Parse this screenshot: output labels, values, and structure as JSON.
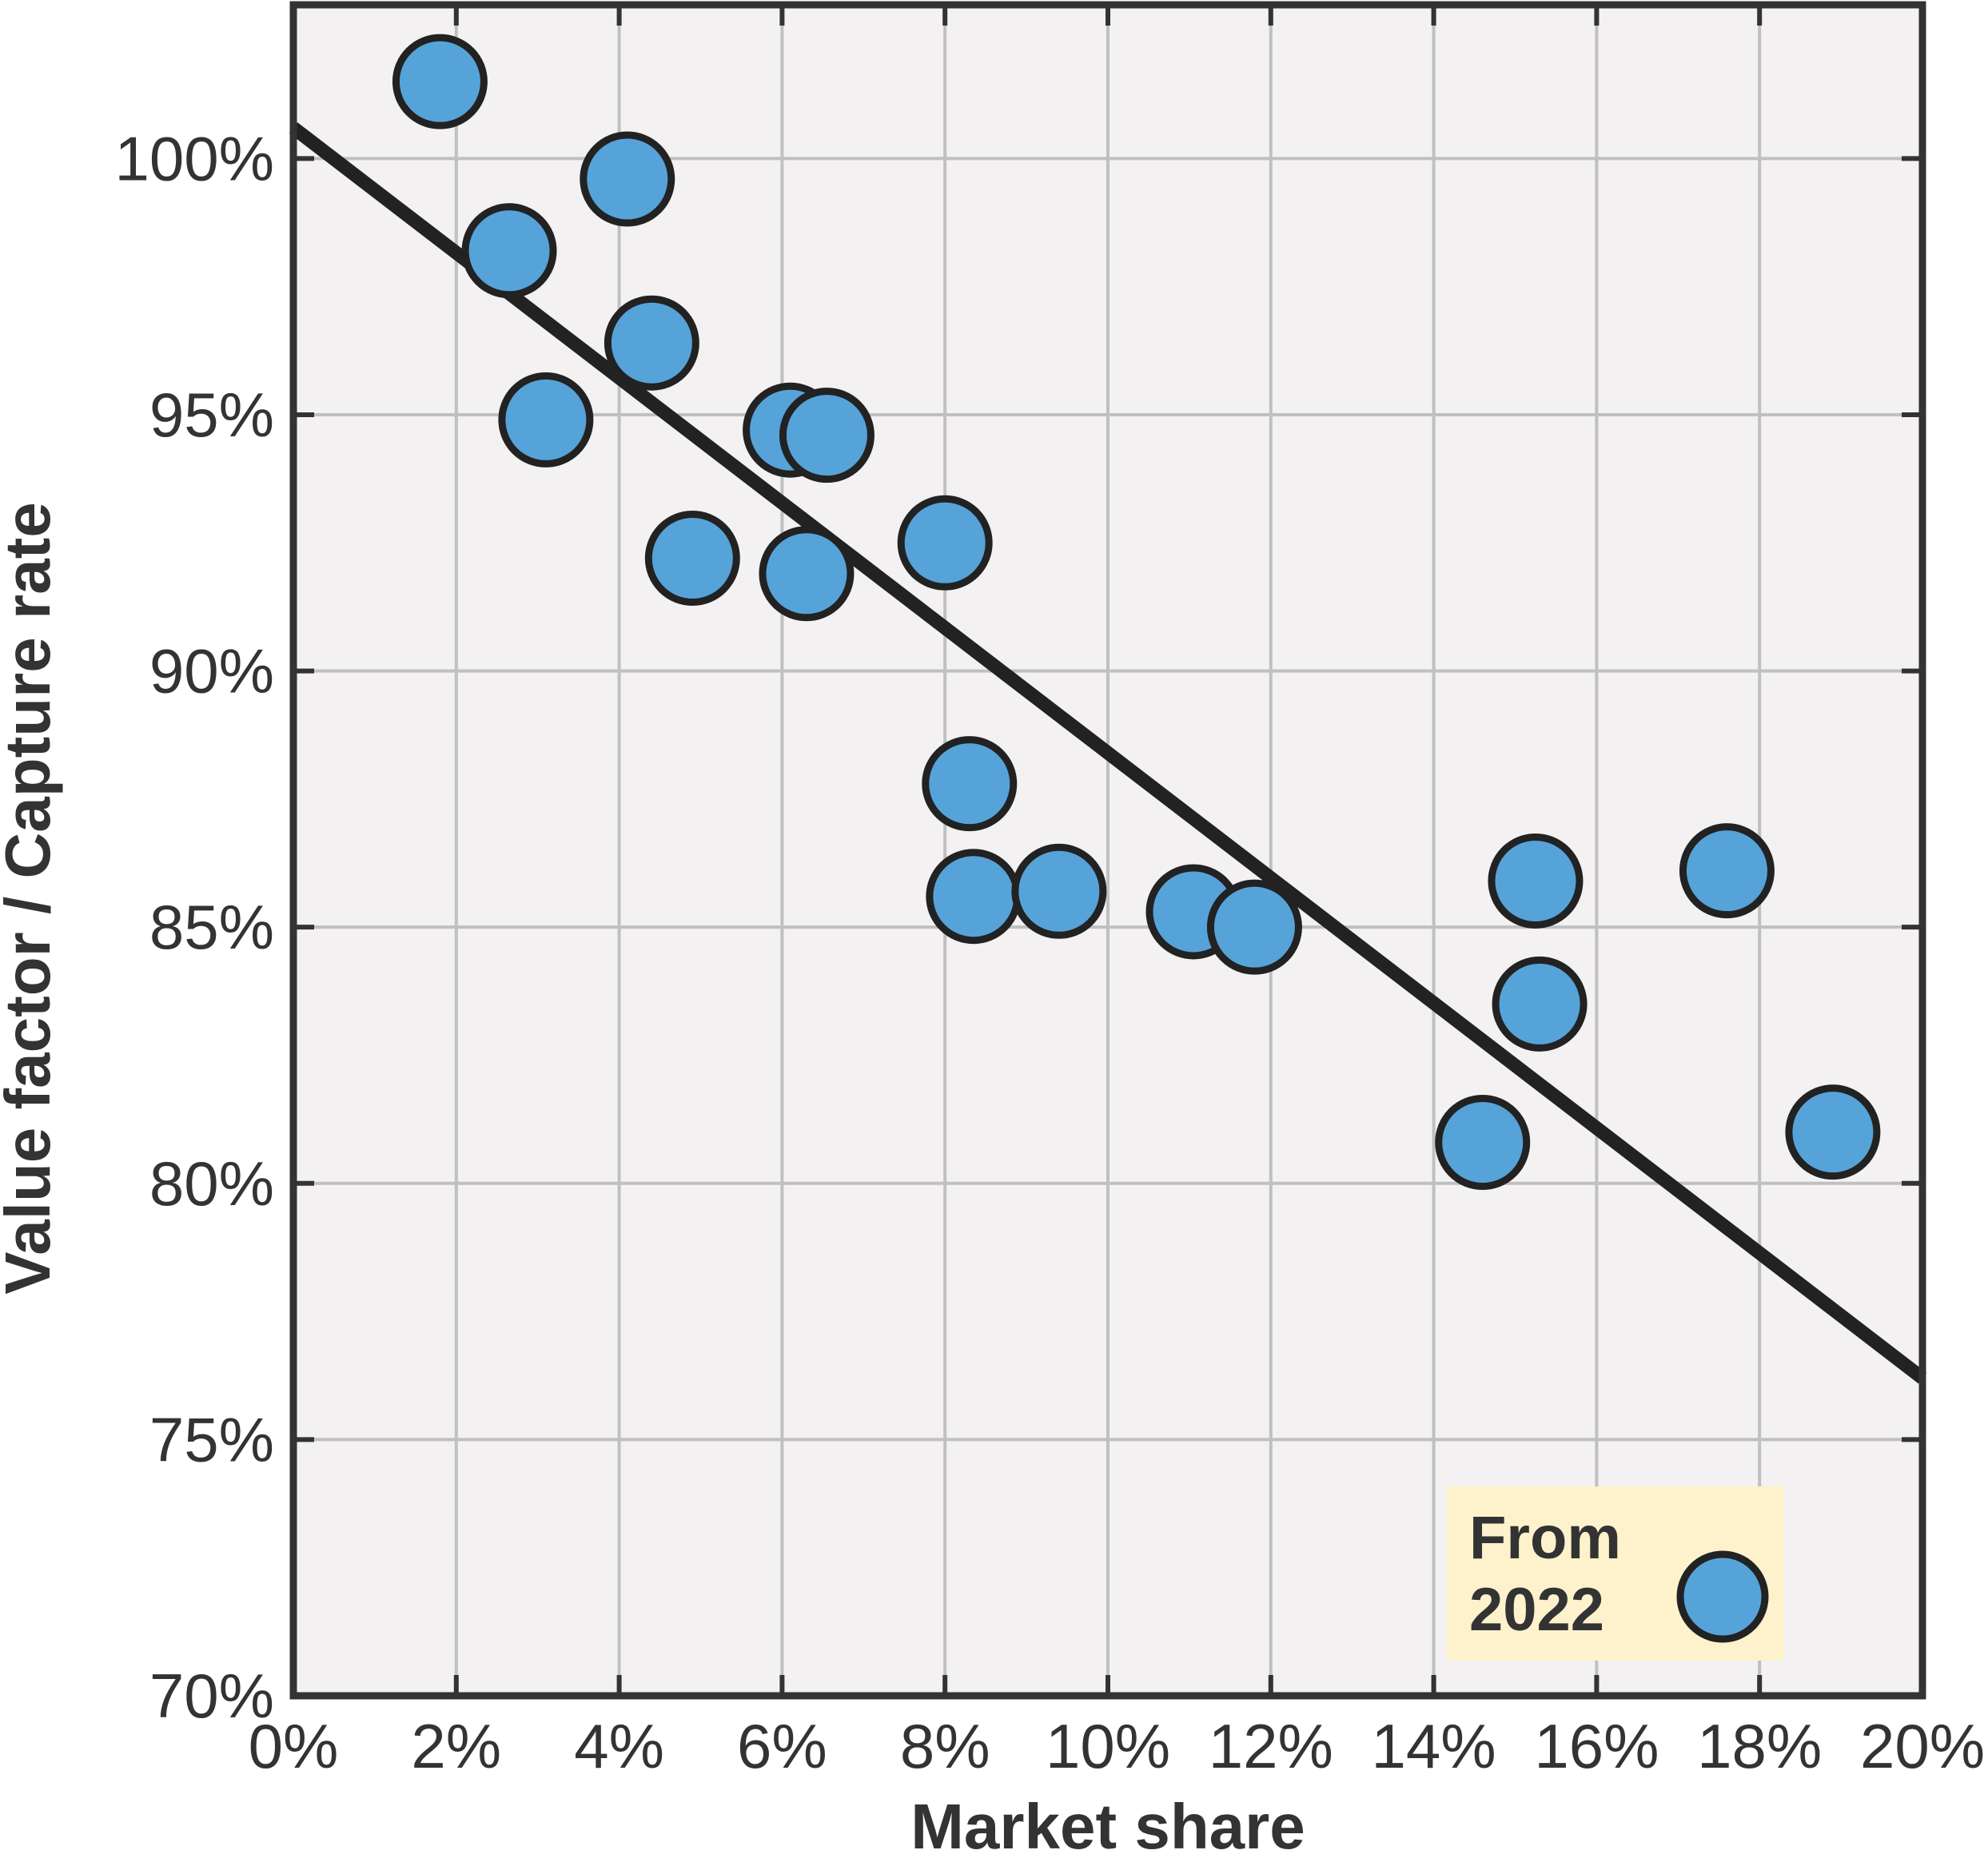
{
  "chart_data": {
    "type": "scatter",
    "xlabel": "Market share",
    "ylabel": "Value factor / Capture rate",
    "xlim": [
      0,
      20
    ],
    "ylim": [
      70,
      103
    ],
    "xticks": [
      0,
      2,
      4,
      6,
      8,
      10,
      12,
      14,
      16,
      18,
      20
    ],
    "yticks": [
      70,
      75,
      80,
      85,
      90,
      95,
      100
    ],
    "x_tick_labels": [
      "0%",
      "2%",
      "4%",
      "6%",
      "8%",
      "10%",
      "12%",
      "14%",
      "16%",
      "18%",
      "20%"
    ],
    "y_tick_labels": [
      "70%",
      "75%",
      "80%",
      "85%",
      "90%",
      "95%",
      "100%"
    ],
    "grid": true,
    "series": [
      {
        "name": "From 2022",
        "color": "#56a3d9",
        "points": [
          {
            "x": 1.8,
            "y": 101.5
          },
          {
            "x": 2.65,
            "y": 98.2
          },
          {
            "x": 3.1,
            "y": 94.9
          },
          {
            "x": 4.1,
            "y": 99.6
          },
          {
            "x": 4.4,
            "y": 96.4
          },
          {
            "x": 4.9,
            "y": 92.2
          },
          {
            "x": 6.1,
            "y": 94.7
          },
          {
            "x": 6.3,
            "y": 91.9
          },
          {
            "x": 6.55,
            "y": 94.6
          },
          {
            "x": 8.0,
            "y": 92.5
          },
          {
            "x": 8.3,
            "y": 87.8
          },
          {
            "x": 8.35,
            "y": 85.6
          },
          {
            "x": 9.4,
            "y": 85.7
          },
          {
            "x": 11.05,
            "y": 85.3
          },
          {
            "x": 11.8,
            "y": 85.0
          },
          {
            "x": 14.6,
            "y": 80.8
          },
          {
            "x": 15.25,
            "y": 85.9
          },
          {
            "x": 15.3,
            "y": 83.5
          },
          {
            "x": 17.6,
            "y": 86.1
          },
          {
            "x": 18.9,
            "y": 81.0
          }
        ]
      }
    ],
    "trendline": {
      "x": [
        0,
        20
      ],
      "y": [
        100.6,
        76.2
      ],
      "color": "#222222"
    },
    "legend": {
      "title_lines": [
        "From",
        "2022"
      ],
      "placement": "bottom-right",
      "background": "#fdf2cc"
    },
    "plot_background": "#f3f1f2",
    "grid_color": "#c0c0c0",
    "frame_color": "#333333"
  }
}
